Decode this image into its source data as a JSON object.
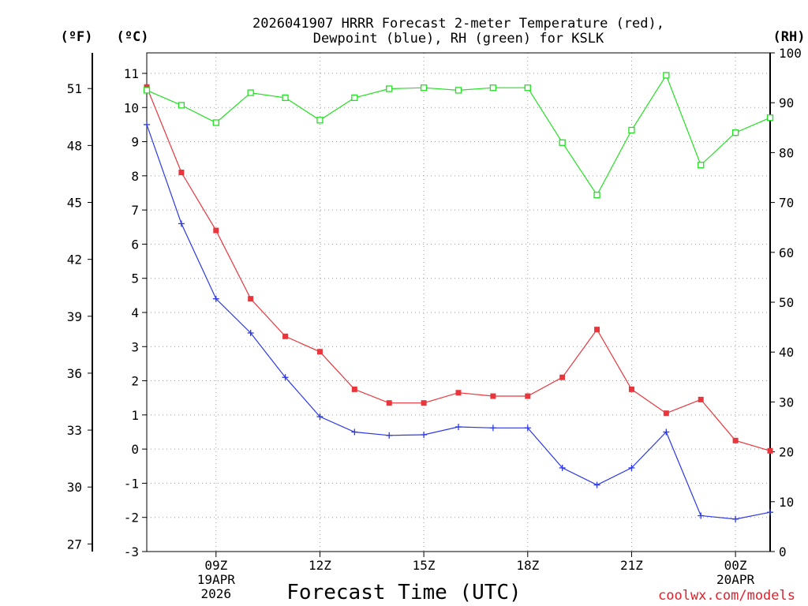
{
  "chart_data": {
    "type": "line",
    "title_line1": "2026041907 HRRR Forecast 2-meter Temperature (red),",
    "title_line2": "Dewpoint (blue), RH (green) for KSLK",
    "xlabel": "Forecast Time (UTC)",
    "credit": "coolwx.com/models",
    "units": {
      "fahrenheit": "(ºF)",
      "celsius": "(ºC)",
      "rh": "(RH)"
    },
    "x_hours": [
      7,
      8,
      9,
      10,
      11,
      12,
      13,
      14,
      15,
      16,
      17,
      18,
      19,
      20,
      21,
      22,
      23,
      24,
      25
    ],
    "xlim": [
      7,
      25
    ],
    "x_ticks": [
      {
        "hour": 9,
        "lines": [
          "09Z",
          "19APR",
          "2026"
        ]
      },
      {
        "hour": 12,
        "lines": [
          "12Z"
        ]
      },
      {
        "hour": 15,
        "lines": [
          "15Z"
        ]
      },
      {
        "hour": 18,
        "lines": [
          "18Z"
        ]
      },
      {
        "hour": 21,
        "lines": [
          "21Z"
        ]
      },
      {
        "hour": 24,
        "lines": [
          "00Z",
          "20APR"
        ]
      }
    ],
    "ylim_celsius": [
      -3,
      11.6
    ],
    "yticks_celsius": [
      "-3",
      "-2",
      "-1",
      "0",
      "1",
      "2",
      "3",
      "4",
      "5",
      "6",
      "7",
      "8",
      "9",
      "10",
      "11"
    ],
    "yticks_fahrenheit": [
      "27",
      "30",
      "33",
      "36",
      "39",
      "42",
      "45",
      "48",
      "51"
    ],
    "ylim_rh": [
      0,
      100
    ],
    "yticks_rh": [
      "0",
      "10",
      "20",
      "30",
      "40",
      "50",
      "60",
      "70",
      "80",
      "90",
      "100"
    ],
    "grid": true,
    "series": [
      {
        "name": "2-meter Temperature",
        "axis": "celsius",
        "color": "#e8363c",
        "marker": "filled-square",
        "values": [
          10.6,
          8.1,
          6.4,
          4.4,
          3.3,
          2.85,
          1.75,
          1.35,
          1.35,
          1.65,
          1.55,
          1.55,
          2.1,
          3.5,
          1.75,
          1.05,
          1.45,
          0.25,
          -0.05
        ]
      },
      {
        "name": "Dewpoint",
        "axis": "celsius",
        "color": "#2b38e8",
        "marker": "plus",
        "values": [
          9.5,
          6.6,
          4.4,
          3.4,
          2.1,
          0.95,
          0.5,
          0.4,
          0.42,
          0.65,
          0.62,
          0.62,
          -0.55,
          -1.05,
          -0.55,
          0.5,
          -1.95,
          -2.05,
          -1.85
        ]
      },
      {
        "name": "Relative Humidity",
        "axis": "rh",
        "color": "#22e022",
        "marker": "open-square",
        "values": [
          92.5,
          89.5,
          86,
          92,
          91,
          86.5,
          91,
          92.8,
          93,
          92.5,
          93,
          93,
          82,
          71.5,
          84.5,
          95.5,
          77.5,
          84,
          87
        ]
      }
    ]
  }
}
